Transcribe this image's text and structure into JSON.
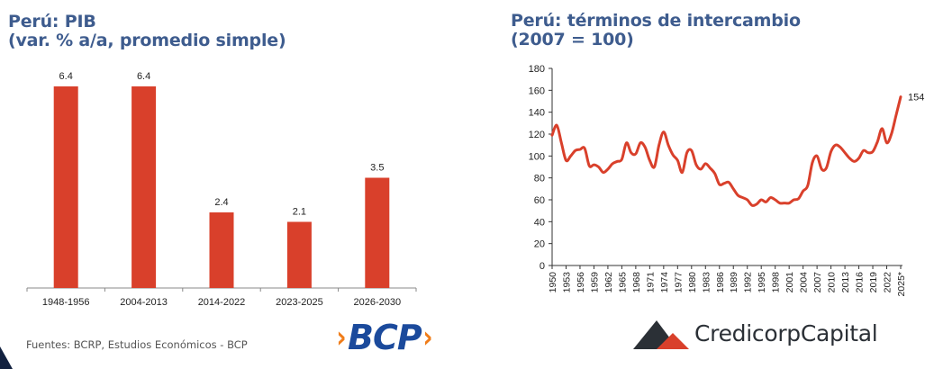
{
  "left_chart": {
    "title_line1": "Perú: PIB",
    "title_line2": "(var. % a/a, promedio simple)"
  },
  "right_chart": {
    "title_line1": "Perú: términos de intercambio",
    "title_line2": "(2007 = 100)",
    "end_label": "154"
  },
  "footer": {
    "sources": "Fuentes: BCRP, Estudios Económicos - BCP",
    "bcp_logo_text": "BCP",
    "credicorp_logo_text": "CredicorpCapital"
  },
  "colors": {
    "title": "#3E5C8E",
    "series_red": "#D9402B",
    "bcp_blue": "#1B4A9C",
    "bcp_orange": "#F07D1A",
    "credicorp_dark": "#2b3036"
  },
  "chart_data": [
    {
      "type": "bar",
      "title": "Perú: PIB (var. % a/a, promedio simple)",
      "categories": [
        "1948-1956",
        "2004-2013",
        "2014-2022",
        "2023-2025",
        "2026-2030"
      ],
      "values": [
        6.4,
        6.4,
        2.4,
        2.1,
        3.5
      ],
      "data_labels": [
        "6.4",
        "6.4",
        "2.4",
        "2.1",
        "3.5"
      ],
      "xlabel": "",
      "ylabel": "",
      "ylim": [
        0,
        6.4
      ],
      "grid": false,
      "legend": null
    },
    {
      "type": "line",
      "title": "Perú: términos de intercambio (2007 = 100)",
      "xlabel": "",
      "ylabel": "",
      "ylim": [
        0,
        180
      ],
      "yticks": [
        0,
        20,
        40,
        60,
        80,
        100,
        120,
        140,
        160,
        180
      ],
      "xtick_labels": [
        "1950",
        "1953",
        "1956",
        "1959",
        "1962",
        "1965",
        "1968",
        "1971",
        "1974",
        "1977",
        "1980",
        "1983",
        "1986",
        "1989",
        "1992",
        "1995",
        "1998",
        "2001",
        "2004",
        "2007",
        "2010",
        "2013",
        "2016",
        "2019",
        "2022",
        "2025*"
      ],
      "grid": false,
      "legend": null,
      "annotations": [
        {
          "x": 2025,
          "text": "154"
        }
      ],
      "x": [
        1950,
        1951,
        1952,
        1953,
        1954,
        1955,
        1956,
        1957,
        1958,
        1959,
        1960,
        1961,
        1962,
        1963,
        1964,
        1965,
        1966,
        1967,
        1968,
        1969,
        1970,
        1971,
        1972,
        1973,
        1974,
        1975,
        1976,
        1977,
        1978,
        1979,
        1980,
        1981,
        1982,
        1983,
        1984,
        1985,
        1986,
        1987,
        1988,
        1989,
        1990,
        1991,
        1992,
        1993,
        1994,
        1995,
        1996,
        1997,
        1998,
        1999,
        2000,
        2001,
        2002,
        2003,
        2004,
        2005,
        2006,
        2007,
        2008,
        2009,
        2010,
        2011,
        2012,
        2013,
        2014,
        2015,
        2016,
        2017,
        2018,
        2019,
        2020,
        2021,
        2022,
        2023,
        2024,
        2025
      ],
      "series": [
        {
          "name": "Términos de intercambio",
          "values": [
            119,
            128,
            112,
            96,
            100,
            105,
            106,
            107,
            91,
            92,
            90,
            85,
            88,
            93,
            95,
            97,
            112,
            103,
            102,
            112,
            108,
            96,
            90,
            110,
            122,
            110,
            101,
            96,
            85,
            103,
            105,
            92,
            88,
            93,
            89,
            84,
            74,
            75,
            76,
            70,
            64,
            62,
            60,
            55,
            56,
            60,
            58,
            62,
            60,
            57,
            57,
            57,
            60,
            61,
            68,
            73,
            94,
            100,
            88,
            89,
            104,
            110,
            108,
            103,
            98,
            95,
            98,
            105,
            103,
            104,
            113,
            125,
            112,
            120,
            137,
            154
          ]
        }
      ]
    }
  ]
}
